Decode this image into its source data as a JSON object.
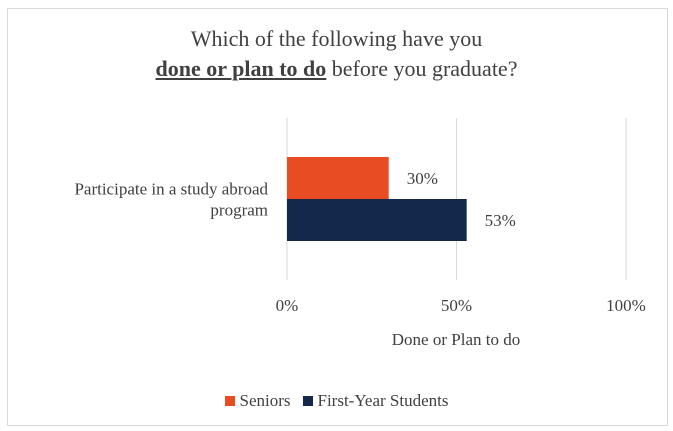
{
  "chart_data": {
    "type": "bar",
    "orientation": "horizontal",
    "title_line1": "Which of the following have you",
    "title_line2_emphasis": "done or plan to do",
    "title_line2_rest": " before you graduate?",
    "categories": [
      "Participate in a study abroad program"
    ],
    "category_label_lines": [
      "Participate in a study abroad",
      "program"
    ],
    "series": [
      {
        "name": "Seniors",
        "values": [
          0.3
        ],
        "labels": [
          "30%"
        ],
        "color": "#e84c22"
      },
      {
        "name": "First-Year Students",
        "values": [
          0.53
        ],
        "labels": [
          "53%"
        ],
        "color": "#14284b"
      }
    ],
    "xlabel": "Done or Plan to do",
    "xlim": [
      0,
      1
    ],
    "x_ticks": [
      0,
      0.5,
      1
    ],
    "x_tick_labels": [
      "0%",
      "50%",
      "100%"
    ],
    "grid": true,
    "legend_position": "bottom"
  }
}
